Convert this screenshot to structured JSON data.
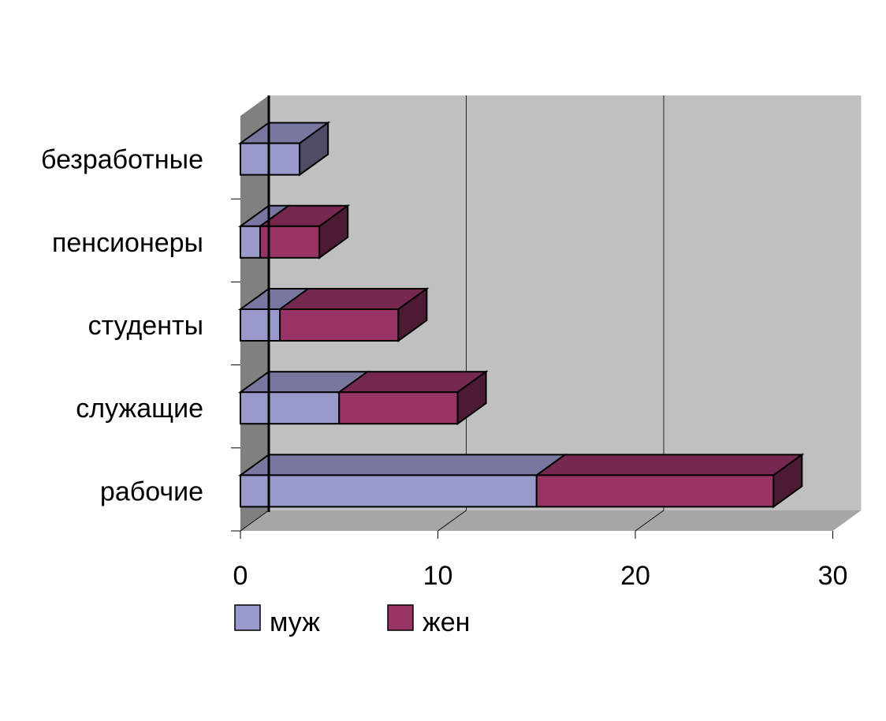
{
  "chart_data": {
    "type": "bar",
    "orientation": "horizontal",
    "stacked": true,
    "three_d": true,
    "categories": [
      "безработные",
      "пенсионеры",
      "студенты",
      "служащие",
      "рабочие"
    ],
    "series": [
      {
        "name": "муж",
        "values": [
          3,
          1,
          2,
          5,
          15
        ],
        "color": "#9999cc"
      },
      {
        "name": "жен",
        "values": [
          0,
          3,
          6,
          6,
          12
        ],
        "color": "#993366"
      }
    ],
    "xlim": [
      0,
      30
    ],
    "xticks": [
      0,
      10,
      20,
      30
    ],
    "grid": true,
    "legend_position": "bottom",
    "colors": {
      "wall": "#c0c0c0",
      "side_wall": "#808080",
      "floor": "#a6a6a6"
    }
  }
}
